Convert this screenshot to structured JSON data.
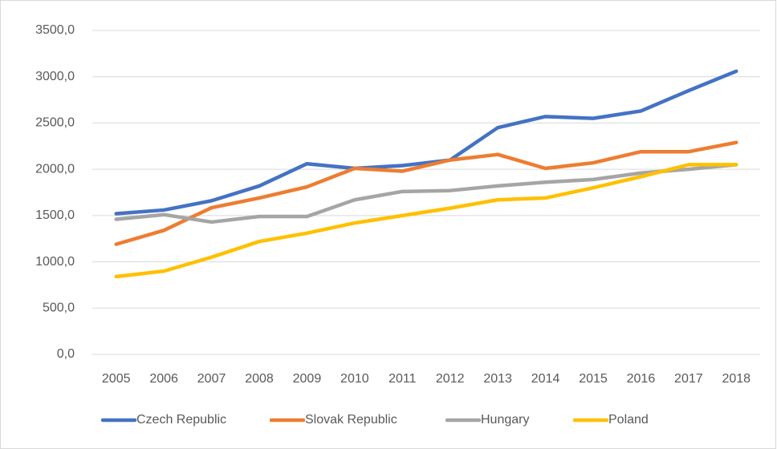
{
  "chart_data": {
    "type": "line",
    "categories": [
      "2005",
      "2006",
      "2007",
      "2008",
      "2009",
      "2010",
      "2011",
      "2012",
      "2013",
      "2014",
      "2015",
      "2016",
      "2017",
      "2018"
    ],
    "series": [
      {
        "name": "Czech Republic",
        "color": "#4472c4",
        "values": [
          1520,
          1560,
          1660,
          1820,
          2060,
          2010,
          2040,
          2100,
          2450,
          2570,
          2550,
          2630,
          2850,
          3060
        ]
      },
      {
        "name": "Slovak Republic",
        "color": "#ed7d31",
        "values": [
          1190,
          1340,
          1585,
          1690,
          1810,
          2010,
          1980,
          2100,
          2160,
          2010,
          2070,
          2190,
          2190,
          2290
        ]
      },
      {
        "name": "Hungary",
        "color": "#a5a5a5",
        "values": [
          1460,
          1510,
          1430,
          1490,
          1490,
          1670,
          1760,
          1770,
          1820,
          1860,
          1890,
          1960,
          2000,
          2050
        ]
      },
      {
        "name": "Poland",
        "color": "#ffc000",
        "values": [
          840,
          900,
          1050,
          1220,
          1310,
          1420,
          1500,
          1580,
          1670,
          1690,
          1800,
          1920,
          2050,
          2050
        ]
      }
    ],
    "ylim": [
      0,
      3500
    ],
    "yticks": [
      {
        "value": 0,
        "label": "0,0"
      },
      {
        "value": 500,
        "label": "500,0"
      },
      {
        "value": 1000,
        "label": "1000,0"
      },
      {
        "value": 1500,
        "label": "1500,0"
      },
      {
        "value": 2000,
        "label": "2000,0"
      },
      {
        "value": 2500,
        "label": "2500,0"
      },
      {
        "value": 3000,
        "label": "3000,0"
      },
      {
        "value": 3500,
        "label": "3500,0"
      }
    ],
    "grid": true,
    "legend": "bottom"
  }
}
